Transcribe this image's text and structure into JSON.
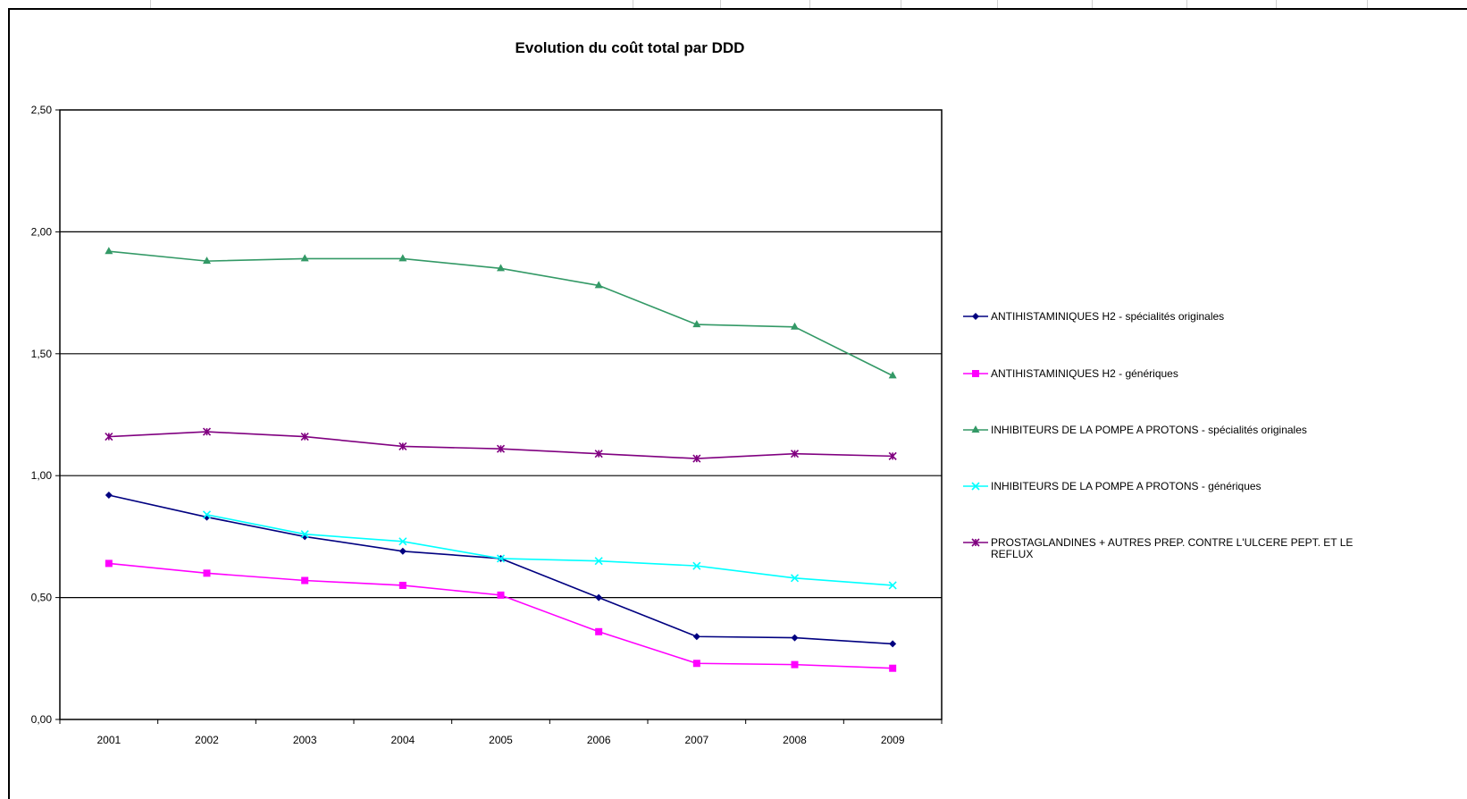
{
  "chart_data": {
    "type": "line",
    "title": "Evolution du coût total par DDD",
    "xlabel": "",
    "ylabel": "",
    "ylim": [
      0,
      2.5
    ],
    "yticks": [
      0,
      0.5,
      1.0,
      1.5,
      2.0,
      2.5
    ],
    "ytick_labels": [
      "0,00",
      "0,50",
      "1,00",
      "1,50",
      "2,00",
      "2,50"
    ],
    "categories": [
      "2001",
      "2002",
      "2003",
      "2004",
      "2005",
      "2006",
      "2007",
      "2008",
      "2009"
    ],
    "grid": "horizontal major",
    "legend_position": "right",
    "series": [
      {
        "name": "ANTIHISTAMINIQUES  H2 - spécialités originales",
        "color": "#000080",
        "marker": "diamond",
        "values": [
          0.92,
          0.83,
          0.75,
          0.69,
          0.66,
          0.5,
          0.34,
          0.335,
          0.31
        ]
      },
      {
        "name": "ANTIHISTAMINIQUES  H2 - génériques",
        "color": "#FF00FF",
        "marker": "square",
        "values": [
          0.64,
          0.6,
          0.57,
          0.55,
          0.51,
          0.36,
          0.23,
          0.225,
          0.21
        ]
      },
      {
        "name": "INHIBITEURS  DE LA POMPE A PROTONS  - spécialités originales",
        "color": "#339966",
        "marker": "triangle",
        "values": [
          1.92,
          1.88,
          1.89,
          1.89,
          1.85,
          1.78,
          1.62,
          1.61,
          1.41
        ]
      },
      {
        "name": "INHIBITEURS  DE LA POMPE A PROTONS  - génériques",
        "color": "#00FFFF",
        "marker": "x",
        "values": [
          null,
          0.84,
          0.76,
          0.73,
          0.66,
          0.65,
          0.63,
          0.58,
          0.55
        ]
      },
      {
        "name": "PROSTAGLANDINES  + AUTRES PREP. CONTRE L'ULCERE PEPT. ET LE REFLUX",
        "color": "#800080",
        "marker": "star",
        "values": [
          1.16,
          1.18,
          1.16,
          1.12,
          1.11,
          1.09,
          1.07,
          1.09,
          1.08
        ]
      }
    ]
  }
}
